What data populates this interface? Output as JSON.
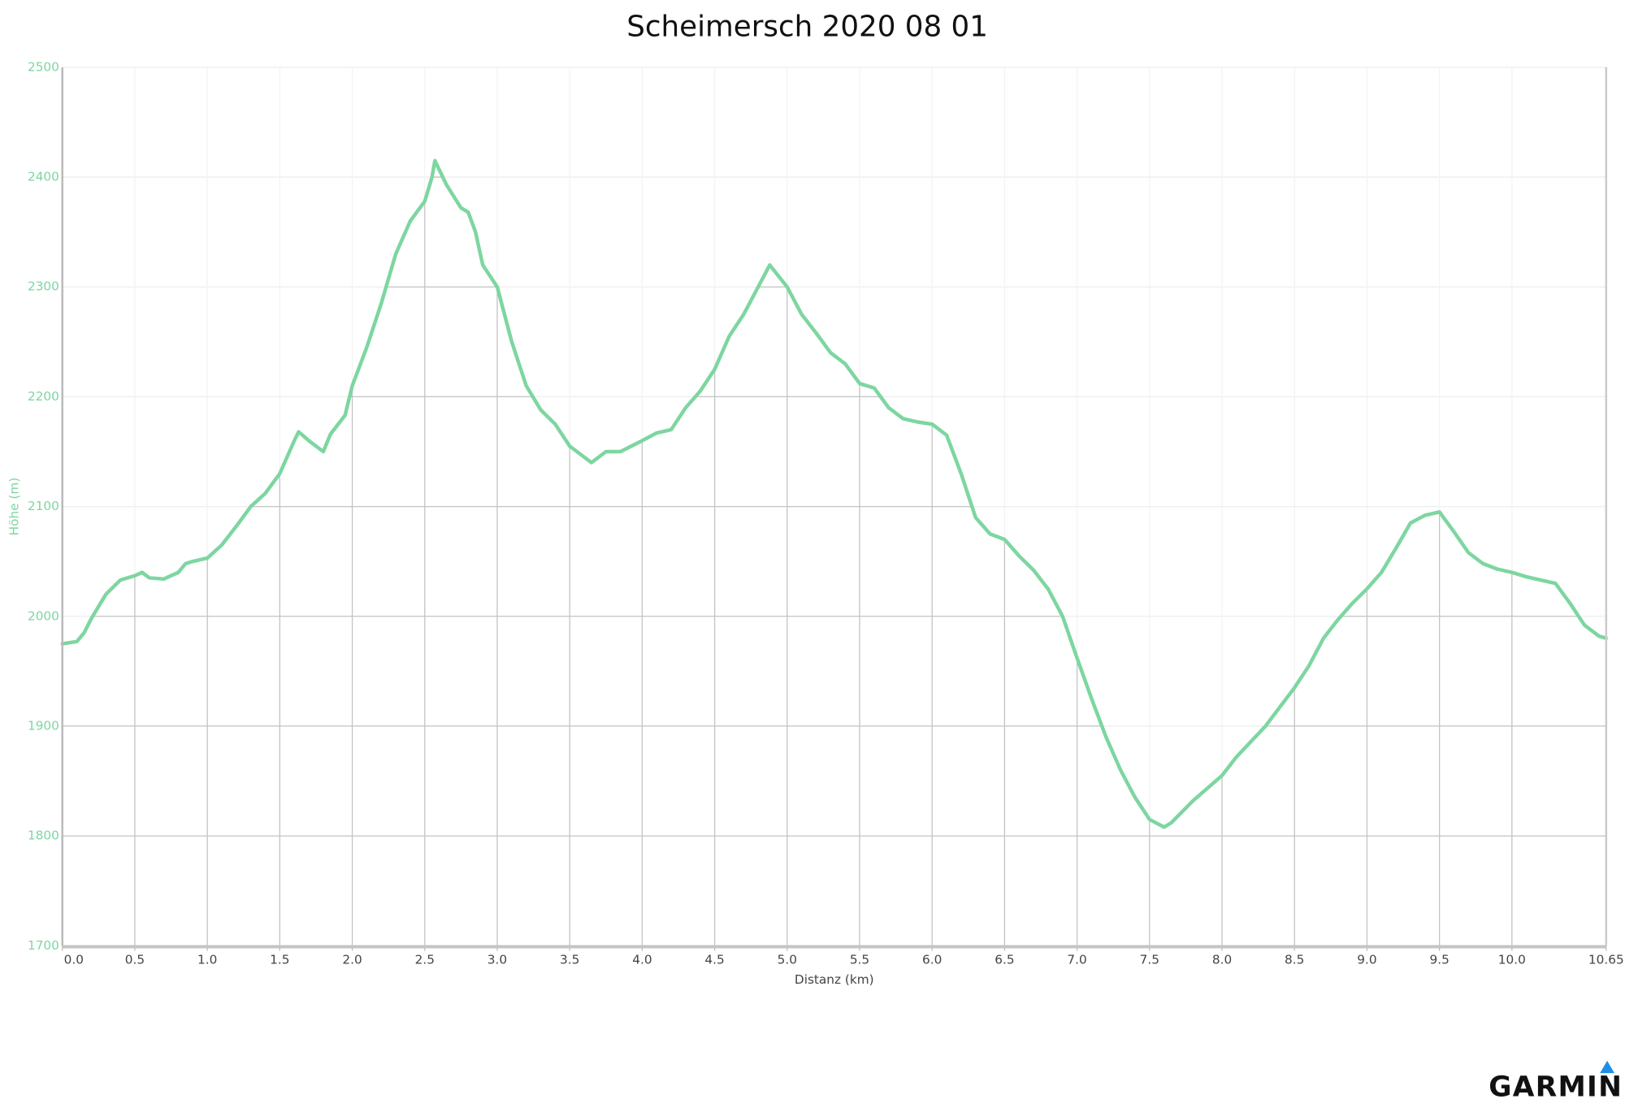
{
  "chart_data": {
    "type": "line",
    "title": "Scheimersch 2020 08 01",
    "x_label": "Distanz (km)",
    "y_label": "Höhe (m)",
    "color": "#7dd6a0",
    "grid": true,
    "x": [
      0,
      0.1,
      0.15,
      0.2,
      0.3,
      0.4,
      0.5,
      0.55,
      0.6,
      0.7,
      0.8,
      0.85,
      0.9,
      1.0,
      1.1,
      1.2,
      1.3,
      1.4,
      1.5,
      1.6,
      1.63,
      1.7,
      1.8,
      1.85,
      1.95,
      2.0,
      2.1,
      2.2,
      2.3,
      2.4,
      2.5,
      2.55,
      2.57,
      2.65,
      2.75,
      2.8,
      2.85,
      2.9,
      3.0,
      3.1,
      3.2,
      3.3,
      3.4,
      3.5,
      3.6,
      3.65,
      3.75,
      3.85,
      4.0,
      4.1,
      4.2,
      4.3,
      4.4,
      4.5,
      4.6,
      4.7,
      4.8,
      4.88,
      5.0,
      5.1,
      5.2,
      5.3,
      5.4,
      5.5,
      5.6,
      5.7,
      5.8,
      5.9,
      6.0,
      6.1,
      6.2,
      6.3,
      6.4,
      6.5,
      6.6,
      6.7,
      6.8,
      6.9,
      7.0,
      7.1,
      7.2,
      7.3,
      7.4,
      7.5,
      7.6,
      7.65,
      7.8,
      8.0,
      8.1,
      8.3,
      8.5,
      8.6,
      8.7,
      8.8,
      8.9,
      9.0,
      9.1,
      9.2,
      9.3,
      9.4,
      9.5,
      9.6,
      9.7,
      9.8,
      9.9,
      10.0,
      10.1,
      10.2,
      10.3,
      10.4,
      10.5,
      10.6,
      10.65
    ],
    "values": [
      1975,
      1977,
      1985,
      1998,
      2020,
      2033,
      2037,
      2040,
      2035,
      2034,
      2040,
      2048,
      2050,
      2053,
      2065,
      2082,
      2100,
      2112,
      2130,
      2160,
      2168,
      2160,
      2150,
      2166,
      2183,
      2210,
      2245,
      2285,
      2330,
      2360,
      2378,
      2400,
      2415,
      2393,
      2372,
      2368,
      2350,
      2320,
      2300,
      2250,
      2210,
      2188,
      2175,
      2155,
      2145,
      2140,
      2150,
      2150,
      2160,
      2167,
      2170,
      2190,
      2205,
      2225,
      2255,
      2275,
      2300,
      2320,
      2300,
      2275,
      2258,
      2240,
      2230,
      2212,
      2208,
      2190,
      2180,
      2177,
      2175,
      2165,
      2130,
      2090,
      2075,
      2070,
      2055,
      2042,
      2025,
      2000,
      1962,
      1925,
      1890,
      1860,
      1835,
      1815,
      1808,
      1812,
      1832,
      1855,
      1872,
      1900,
      1935,
      1955,
      1980,
      1997,
      2012,
      2025,
      2040,
      2062,
      2085,
      2092,
      2095,
      2077,
      2058,
      2048,
      2043,
      2040,
      2036,
      2033,
      2030,
      2012,
      1992,
      1982,
      1980
    ],
    "xlim": [
      0,
      10.65
    ],
    "xticks": [
      {
        "value": 0,
        "label": "0.0"
      },
      0.5,
      {
        "value": 1,
        "label": "1.0"
      },
      1.5,
      {
        "value": 2,
        "label": "2.0"
      },
      2.5,
      {
        "value": 3,
        "label": "3.0"
      },
      3.5,
      {
        "value": 4,
        "label": "4.0"
      },
      4.5,
      {
        "value": 5,
        "label": "5.0"
      },
      5.5,
      {
        "value": 6,
        "label": "6.0"
      },
      6.5,
      {
        "value": 7,
        "label": "7.0"
      },
      7.5,
      {
        "value": 8,
        "label": "8.0"
      },
      8.5,
      {
        "value": 9,
        "label": "9.0"
      },
      9.5,
      {
        "value": 10,
        "label": "10.0"
      },
      10.65
    ],
    "ylim": [
      1700,
      2500
    ],
    "yticks": [
      1700,
      1800,
      1900,
      2000,
      2100,
      2200,
      2300,
      2400,
      2500
    ]
  },
  "brand": "GARMIN"
}
